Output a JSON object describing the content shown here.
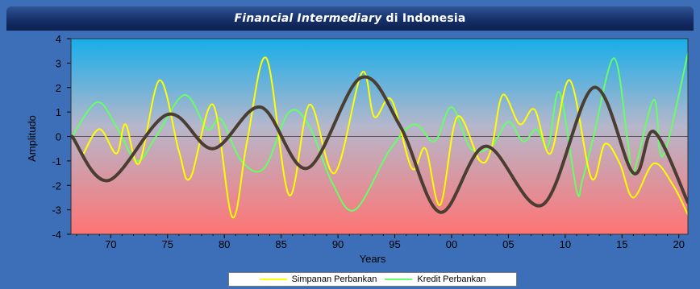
{
  "title": {
    "italic": "Financial Intermediary",
    "rest": " di  Indonesia"
  },
  "legend": {
    "items": [
      {
        "label": "Simpanan Perbankan",
        "color": "#ffff00"
      },
      {
        "label": "Kredit Perbankan",
        "color": "#66ff66"
      }
    ]
  },
  "chart_data": {
    "type": "line",
    "xlabel": "Years",
    "ylabel": "Amplitudo",
    "xlim": [
      1966.5,
      2020.8
    ],
    "ylim": [
      -4,
      4
    ],
    "x_ticks": [
      1970,
      1975,
      1980,
      1985,
      1990,
      1995,
      2000,
      2005,
      2010,
      2015,
      2020
    ],
    "x_tick_labels": [
      "70",
      "75",
      "80",
      "85",
      "90",
      "95",
      "00",
      "05",
      "10",
      "15",
      "20"
    ],
    "y_ticks": [
      -4,
      -3,
      -2,
      -1,
      0,
      1,
      2,
      3,
      4
    ],
    "y_tick_labels": [
      "-4",
      "-3",
      "-2",
      "-1",
      "0",
      "1",
      "2",
      "3",
      "4"
    ],
    "zero_line": true,
    "background_gradient": [
      "#1ab0ec",
      "#ff7878"
    ],
    "series": [
      {
        "name": "Simpanan Perbankan",
        "color": "#ffff00",
        "x": [
          1967.5,
          1969,
          1970.5,
          1971.3,
          1972.5,
          1974.3,
          1976,
          1977,
          1979,
          1980.7,
          1982,
          1983.7,
          1985.7,
          1987.5,
          1989.7,
          1992.1,
          1993.2,
          1994.7,
          1996.5,
          1997.7,
          1999,
          2000.5,
          2002.5,
          2003.5,
          2004.5,
          2006,
          2007.3,
          2008.7,
          2010.4,
          2012.3,
          2013.5,
          2014.8,
          2016,
          2017.8,
          2019.5,
          2020.8
        ],
        "y": [
          -0.8,
          0.3,
          -0.7,
          0.5,
          -1.1,
          2.3,
          -0.6,
          -1.7,
          1.3,
          -3.3,
          -0.2,
          3.2,
          -2.4,
          1.3,
          -1.5,
          2.6,
          0.8,
          1.5,
          -1.3,
          -0.5,
          -2.8,
          0.8,
          -1.0,
          -0.5,
          1.7,
          0.5,
          1.1,
          -0.7,
          2.3,
          -1.7,
          -0.3,
          -1.1,
          -2.5,
          -1.1,
          -2.0,
          -3.2
        ]
      },
      {
        "name": "Kredit Perbankan",
        "color": "#66ff66",
        "x": [
          1966.6,
          1968.8,
          1970.5,
          1972.3,
          1974,
          1976.5,
          1978.5,
          1979.7,
          1981.5,
          1983.5,
          1985.7,
          1987.5,
          1989.5,
          1991.5,
          1994.5,
          1996.7,
          1998.5,
          2000,
          2001.7,
          2003.5,
          2005,
          2006.3,
          2007.5,
          2008.5,
          2009.5,
          2011,
          2011.5,
          2012.5,
          2014.3,
          2015.5,
          2016,
          2017.8,
          2018.6,
          2020.8
        ],
        "y": [
          0.0,
          1.4,
          0.4,
          -1.0,
          0.0,
          1.7,
          0.3,
          0.7,
          -1.0,
          -1.3,
          1.0,
          0.4,
          -1.9,
          -3.0,
          -0.6,
          0.5,
          -0.2,
          1.2,
          -0.5,
          -0.4,
          0.6,
          -0.2,
          0.3,
          -0.4,
          1.8,
          -2.2,
          -1.8,
          0.0,
          3.2,
          -0.2,
          -1.5,
          1.5,
          -0.8,
          3.4
        ]
      },
      {
        "name": "",
        "color": "#4a3d32",
        "x": [
          1966.6,
          1969.8,
          1975,
          1979,
          1983.2,
          1987.3,
          1992,
          1995.5,
          1999,
          2003,
          2008,
          2012.5,
          2016,
          2017.8,
          2020.8
        ],
        "y": [
          0.0,
          -1.8,
          0.9,
          -0.5,
          1.2,
          -1.3,
          2.4,
          0.4,
          -3.1,
          -0.4,
          -2.8,
          2.0,
          -1.5,
          0.2,
          -2.7
        ]
      }
    ]
  }
}
